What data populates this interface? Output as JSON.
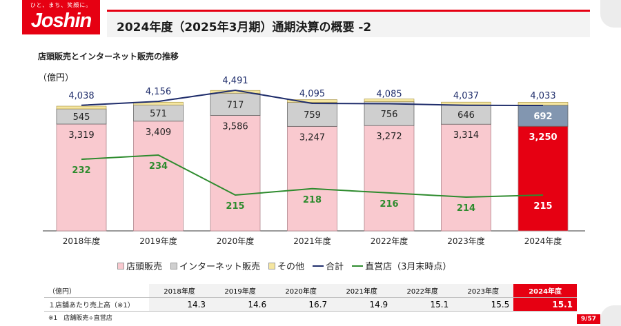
{
  "logo": {
    "tagline": "ひと、まち、笑顔に。",
    "word": "Joshin"
  },
  "header": {
    "title": "2024年度（2025年3月期）通期決算の概要 -2"
  },
  "section": {
    "title": "店頭販売とインターネット販売の推移"
  },
  "colors": {
    "store": "#f9c9cf",
    "store_highlight": "#e60012",
    "internet": "#cfcfcf",
    "internet_highlight": "#8296b0",
    "other": "#f5e6a0",
    "total_line": "#1f2d6b",
    "store_count_line": "#2e8b2e",
    "accent": "#e60012"
  },
  "chart_data": {
    "type": "bar",
    "stacked": true,
    "ylabel": "（億円）",
    "categories": [
      "2018年度",
      "2019年度",
      "2020年度",
      "2021年度",
      "2022年度",
      "2023年度",
      "2024年度"
    ],
    "series": [
      {
        "name": "店頭販売",
        "values": [
          3319,
          3409,
          3586,
          3247,
          3272,
          3314,
          3250
        ],
        "labels": [
          "3,319",
          "3,409",
          "3,586",
          "3,247",
          "3,272",
          "3,314",
          "3,250"
        ]
      },
      {
        "name": "インターネット販売",
        "values": [
          545,
          571,
          717,
          759,
          756,
          646,
          692
        ],
        "labels": [
          "545",
          "571",
          "717",
          "759",
          "756",
          "646",
          "692"
        ]
      },
      {
        "name": "その他",
        "values": [
          174,
          176,
          188,
          89,
          57,
          77,
          91
        ]
      }
    ],
    "lines": [
      {
        "name": "合計",
        "values": [
          4038,
          4156,
          4491,
          4095,
          4085,
          4037,
          4033
        ],
        "labels": [
          "4,038",
          "4,156",
          "4,491",
          "4,095",
          "4,085",
          "4,037",
          "4,033"
        ]
      },
      {
        "name": "直営店（3月末時点）",
        "values": [
          232,
          234,
          215,
          218,
          216,
          214,
          215
        ],
        "labels": [
          "232",
          "234",
          "215",
          "218",
          "216",
          "214",
          "215"
        ]
      }
    ],
    "highlight_index": 6,
    "legend_position": "bottom",
    "grid": false
  },
  "table": {
    "header_label": "（億円）",
    "years": [
      "2018年度",
      "2019年度",
      "2020年度",
      "2021年度",
      "2022年度",
      "2023年度",
      "2024年度"
    ],
    "row_label": "１店舗あたり売上高（※1）",
    "values": [
      "14.3",
      "14.6",
      "16.7",
      "14.9",
      "15.1",
      "15.5",
      "15.1"
    ]
  },
  "footnote": "※1　店舗販売÷直営店",
  "page": {
    "number": "9/57"
  }
}
